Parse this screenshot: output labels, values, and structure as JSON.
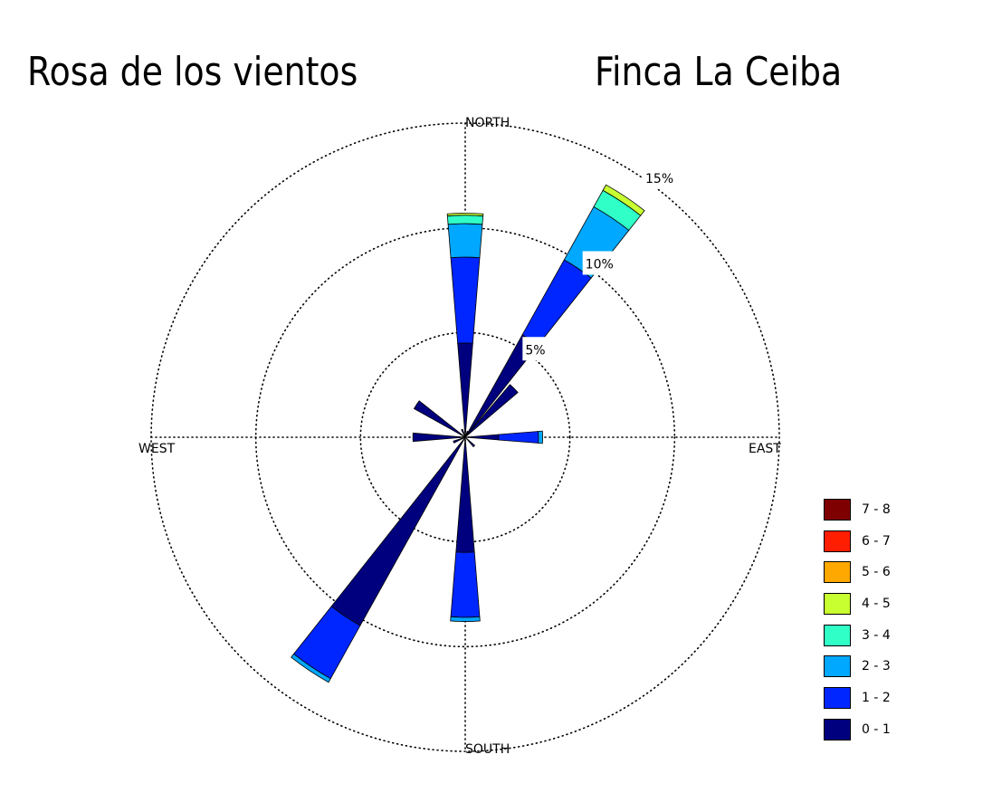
{
  "header": {
    "title_left": "Rosa de los vientos",
    "title_right": "Finca La Ceiba"
  },
  "chart_data": {
    "type": "wind-rose",
    "directions": [
      "NORTH",
      "EAST",
      "SOUTH",
      "WEST"
    ],
    "rings": [
      {
        "value": 5,
        "label": "5%"
      },
      {
        "value": 10,
        "label": "10%"
      },
      {
        "value": 15,
        "label": "15%"
      }
    ],
    "ring_label_angle_deg": 35,
    "grid": "dotted",
    "legend_position": "bottom-right",
    "speed_bins": [
      {
        "label": "0 - 1",
        "color": "#00007f"
      },
      {
        "label": "1 - 2",
        "color": "#0026ff"
      },
      {
        "label": "2 - 3",
        "color": "#00a8ff"
      },
      {
        "label": "3 - 4",
        "color": "#30ffc8"
      },
      {
        "label": "4 - 5",
        "color": "#c8ff30"
      },
      {
        "label": "5 - 6",
        "color": "#ffa800"
      },
      {
        "label": "6 - 7",
        "color": "#ff1e00"
      },
      {
        "label": "7 - 8",
        "color": "#7f0000"
      }
    ],
    "sectors": [
      {
        "direction_deg": 0,
        "cumulative": [
          4.5,
          8.6,
          10.2,
          10.6,
          10.7
        ]
      },
      {
        "direction_deg": 22.5,
        "cumulative": [
          0.3,
          0.3,
          0.3,
          0.3,
          0.3
        ]
      },
      {
        "direction_deg": 45,
        "cumulative": [
          3.3,
          3.3,
          3.3,
          3.3,
          3.3
        ]
      },
      {
        "direction_deg": 33.75,
        "cumulative": [
          5.6,
          9.7,
          12.6,
          13.5,
          13.8
        ]
      },
      {
        "direction_deg": 90,
        "cumulative": [
          1.6,
          3.5,
          3.7,
          3.7,
          3.7
        ]
      },
      {
        "direction_deg": 135,
        "cumulative": [
          0.6,
          0.6,
          0.6,
          0.6,
          0.6
        ]
      },
      {
        "direction_deg": 180,
        "cumulative": [
          5.5,
          8.6,
          8.8,
          8.8,
          8.8
        ]
      },
      {
        "direction_deg": 213.75,
        "cumulative": [
          10.3,
          13.2,
          13.4,
          13.4,
          13.4
        ]
      },
      {
        "direction_deg": 247.5,
        "cumulative": [
          0.6,
          0.6,
          0.6,
          0.6,
          0.6
        ]
      },
      {
        "direction_deg": 270,
        "cumulative": [
          2.5,
          2.5,
          2.5,
          2.5,
          2.5
        ]
      },
      {
        "direction_deg": 303.75,
        "cumulative": [
          2.8,
          2.8,
          2.8,
          2.8,
          2.8
        ]
      },
      {
        "direction_deg": 337.5,
        "cumulative": [
          0.4,
          0.4,
          0.4,
          0.4,
          0.4
        ]
      }
    ]
  }
}
